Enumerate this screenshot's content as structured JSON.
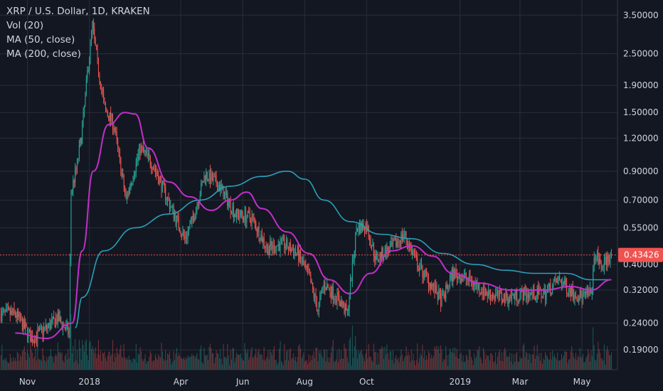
{
  "legend": {
    "title": "XRP / U.S. Dollar, 1D, KRAKEN",
    "vol": "Vol (20)",
    "ma50": "MA (50, close)",
    "ma200": "MA (200, close)"
  },
  "colors": {
    "background": "#131722",
    "grid": "#2a2e39",
    "up": "#26a69a",
    "down": "#ef5350",
    "ma50": "#c22fc9",
    "ma200": "#2a9fb8",
    "current_price": "#ef5350"
  },
  "chart_data": {
    "type": "candlestick",
    "symbol": "XRP / U.S. Dollar",
    "interval": "1D",
    "exchange": "KRAKEN",
    "y_scale": "log",
    "ylim": [
      0.16,
      3.8
    ],
    "y_ticks": [
      "3.50000",
      "2.50000",
      "1.90000",
      "1.50000",
      "1.20000",
      "0.90000",
      "0.70000",
      "0.55000",
      "0.40000",
      "0.32000",
      "0.24000",
      "0.19000"
    ],
    "x_ticks": [
      "Nov",
      "2018",
      "Apr",
      "Jun",
      "Aug",
      "Oct",
      "2019",
      "Mar",
      "May"
    ],
    "current_price": "0.43426",
    "close_points": [
      {
        "date": "2017-10-20",
        "price": 0.26
      },
      {
        "date": "2017-11-05",
        "price": 0.21
      },
      {
        "date": "2017-11-20",
        "price": 0.23
      },
      {
        "date": "2017-12-01",
        "price": 0.25
      },
      {
        "date": "2017-12-12",
        "price": 0.22
      },
      {
        "date": "2017-12-14",
        "price": 0.75
      },
      {
        "date": "2017-12-20",
        "price": 0.95
      },
      {
        "date": "2017-12-25",
        "price": 1.3
      },
      {
        "date": "2017-12-30",
        "price": 2.1
      },
      {
        "date": "2018-01-04",
        "price": 3.2
      },
      {
        "date": "2018-01-09",
        "price": 2.3
      },
      {
        "date": "2018-01-16",
        "price": 1.55
      },
      {
        "date": "2018-01-25",
        "price": 1.35
      },
      {
        "date": "2018-02-06",
        "price": 0.7
      },
      {
        "date": "2018-02-20",
        "price": 1.1
      },
      {
        "date": "2018-03-05",
        "price": 0.95
      },
      {
        "date": "2018-03-18",
        "price": 0.72
      },
      {
        "date": "2018-04-05",
        "price": 0.5
      },
      {
        "date": "2018-04-12",
        "price": 0.58
      },
      {
        "date": "2018-04-25",
        "price": 0.88
      },
      {
        "date": "2018-05-08",
        "price": 0.8
      },
      {
        "date": "2018-05-25",
        "price": 0.62
      },
      {
        "date": "2018-06-10",
        "price": 0.6
      },
      {
        "date": "2018-06-25",
        "price": 0.46
      },
      {
        "date": "2018-07-10",
        "price": 0.48
      },
      {
        "date": "2018-07-25",
        "price": 0.44
      },
      {
        "date": "2018-08-05",
        "price": 0.36
      },
      {
        "date": "2018-08-14",
        "price": 0.27
      },
      {
        "date": "2018-08-20",
        "price": 0.34
      },
      {
        "date": "2018-09-05",
        "price": 0.29
      },
      {
        "date": "2018-09-12",
        "price": 0.26
      },
      {
        "date": "2018-09-21",
        "price": 0.55
      },
      {
        "date": "2018-10-01",
        "price": 0.56
      },
      {
        "date": "2018-10-10",
        "price": 0.42
      },
      {
        "date": "2018-10-25",
        "price": 0.46
      },
      {
        "date": "2018-11-07",
        "price": 0.52
      },
      {
        "date": "2018-11-20",
        "price": 0.4
      },
      {
        "date": "2018-12-05",
        "price": 0.33
      },
      {
        "date": "2018-12-14",
        "price": 0.29
      },
      {
        "date": "2018-12-25",
        "price": 0.37
      },
      {
        "date": "2019-01-10",
        "price": 0.35
      },
      {
        "date": "2019-01-28",
        "price": 0.31
      },
      {
        "date": "2019-02-15",
        "price": 0.3
      },
      {
        "date": "2019-03-05",
        "price": 0.31
      },
      {
        "date": "2019-03-25",
        "price": 0.31
      },
      {
        "date": "2019-04-08",
        "price": 0.35
      },
      {
        "date": "2019-04-20",
        "price": 0.32
      },
      {
        "date": "2019-05-01",
        "price": 0.3
      },
      {
        "date": "2019-05-10",
        "price": 0.31
      },
      {
        "date": "2019-05-14",
        "price": 0.44
      },
      {
        "date": "2019-05-20",
        "price": 0.39
      },
      {
        "date": "2019-05-28",
        "price": 0.43
      }
    ],
    "ma50_points": [
      {
        "date": "2017-10-20",
        "price": 0.22
      },
      {
        "date": "2017-11-20",
        "price": 0.21
      },
      {
        "date": "2017-12-15",
        "price": 0.24
      },
      {
        "date": "2017-12-25",
        "price": 0.45
      },
      {
        "date": "2018-01-05",
        "price": 0.9
      },
      {
        "date": "2018-01-20",
        "price": 1.35
      },
      {
        "date": "2018-02-05",
        "price": 1.5
      },
      {
        "date": "2018-02-15",
        "price": 1.48
      },
      {
        "date": "2018-02-28",
        "price": 1.1
      },
      {
        "date": "2018-03-20",
        "price": 0.82
      },
      {
        "date": "2018-04-10",
        "price": 0.72
      },
      {
        "date": "2018-05-01",
        "price": 0.64
      },
      {
        "date": "2018-05-20",
        "price": 0.7
      },
      {
        "date": "2018-06-05",
        "price": 0.75
      },
      {
        "date": "2018-06-20",
        "price": 0.65
      },
      {
        "date": "2018-07-15",
        "price": 0.53
      },
      {
        "date": "2018-08-05",
        "price": 0.44
      },
      {
        "date": "2018-08-25",
        "price": 0.35
      },
      {
        "date": "2018-09-15",
        "price": 0.31
      },
      {
        "date": "2018-10-05",
        "price": 0.37
      },
      {
        "date": "2018-10-25",
        "price": 0.45
      },
      {
        "date": "2018-11-15",
        "price": 0.47
      },
      {
        "date": "2018-12-05",
        "price": 0.43
      },
      {
        "date": "2018-12-25",
        "price": 0.37
      },
      {
        "date": "2019-01-20",
        "price": 0.34
      },
      {
        "date": "2019-02-20",
        "price": 0.32
      },
      {
        "date": "2019-03-25",
        "price": 0.32
      },
      {
        "date": "2019-04-20",
        "price": 0.33
      },
      {
        "date": "2019-05-10",
        "price": 0.32
      },
      {
        "date": "2019-05-30",
        "price": 0.35
      }
    ],
    "ma200_points": [
      {
        "date": "2017-12-18",
        "price": 0.23
      },
      {
        "date": "2017-12-25",
        "price": 0.3
      },
      {
        "date": "2018-01-15",
        "price": 0.45
      },
      {
        "date": "2018-02-15",
        "price": 0.55
      },
      {
        "date": "2018-03-20",
        "price": 0.62
      },
      {
        "date": "2018-04-20",
        "price": 0.7
      },
      {
        "date": "2018-05-20",
        "price": 0.79
      },
      {
        "date": "2018-06-20",
        "price": 0.86
      },
      {
        "date": "2018-07-15",
        "price": 0.9
      },
      {
        "date": "2018-08-01",
        "price": 0.84
      },
      {
        "date": "2018-08-20",
        "price": 0.7
      },
      {
        "date": "2018-09-15",
        "price": 0.58
      },
      {
        "date": "2018-10-15",
        "price": 0.52
      },
      {
        "date": "2018-11-15",
        "price": 0.5
      },
      {
        "date": "2018-12-15",
        "price": 0.44
      },
      {
        "date": "2019-01-15",
        "price": 0.4
      },
      {
        "date": "2019-02-15",
        "price": 0.38
      },
      {
        "date": "2019-03-15",
        "price": 0.37
      },
      {
        "date": "2019-04-15",
        "price": 0.37
      },
      {
        "date": "2019-05-10",
        "price": 0.35
      },
      {
        "date": "2019-05-30",
        "price": 0.35
      }
    ]
  }
}
